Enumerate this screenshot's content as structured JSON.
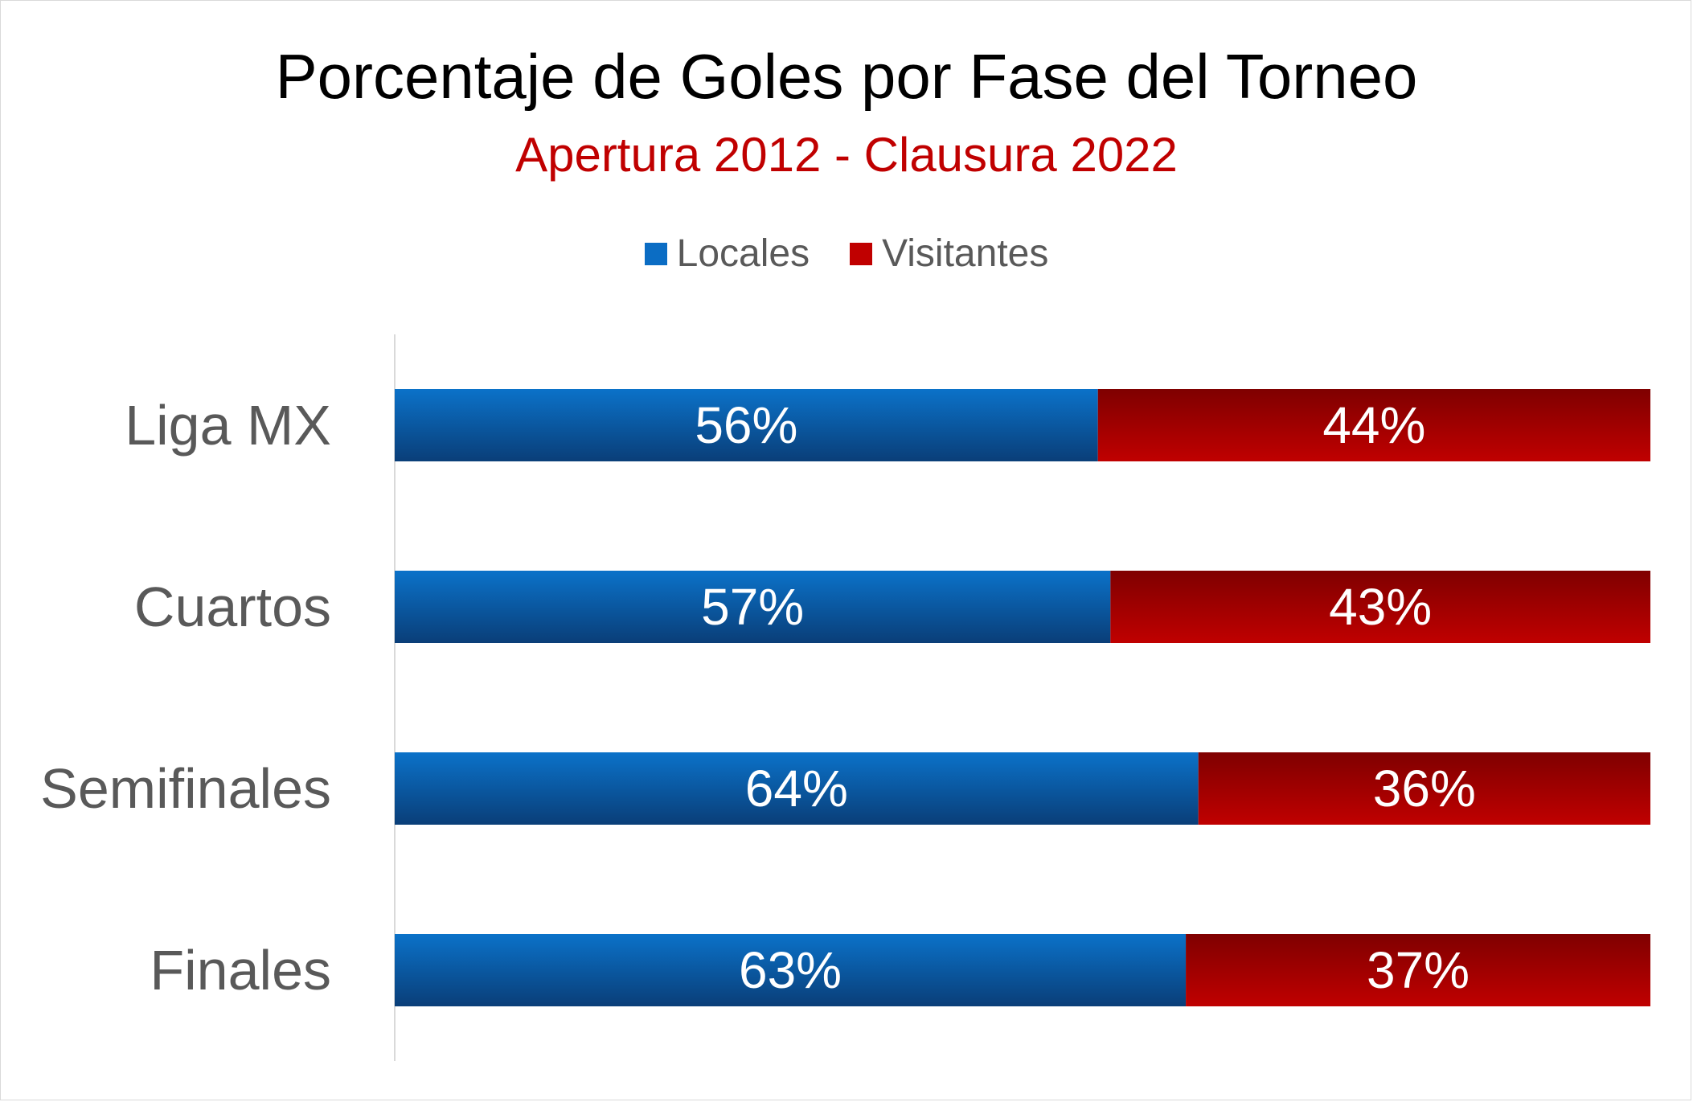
{
  "title": "Porcentaje de Goles por Fase del Torneo",
  "subtitle": "Apertura 2012 - Clausura 2022",
  "colors": {
    "subtitle": "#c00000",
    "locales_top": "#0b72c9",
    "locales_bottom": "#0a3e78",
    "visitantes_top": "#7f0000",
    "visitantes_bottom": "#c00000",
    "category_label": "#595959",
    "axis_line": "#d9d9d9"
  },
  "legend": [
    {
      "name": "Locales",
      "color": "#0b6dc4"
    },
    {
      "name": "Visitantes",
      "color": "#c00000"
    }
  ],
  "chart_data": {
    "type": "bar",
    "orientation": "horizontal",
    "stacked": "100%",
    "categories": [
      "Liga MX",
      "Cuartos",
      "Semifinales",
      "Finales"
    ],
    "series": [
      {
        "name": "Locales",
        "values": [
          56,
          57,
          64,
          63
        ],
        "labels": [
          "56%",
          "57%",
          "64%",
          "63%"
        ]
      },
      {
        "name": "Visitantes",
        "values": [
          44,
          43,
          36,
          37
        ],
        "labels": [
          "44%",
          "43%",
          "36%",
          "37%"
        ]
      }
    ],
    "xlim": [
      0,
      100
    ],
    "grid": false,
    "legend_position": "top"
  }
}
